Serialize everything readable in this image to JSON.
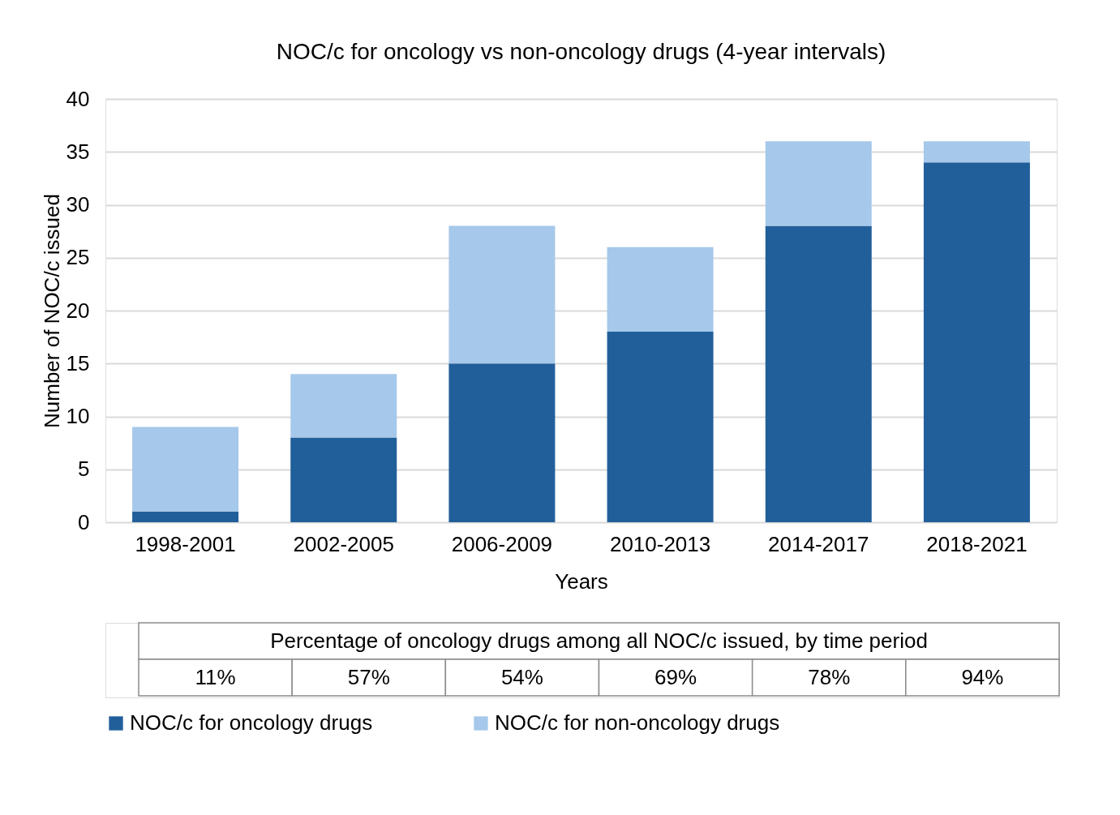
{
  "chart_data": {
    "type": "bar",
    "stacked": true,
    "title": "NOC/c for oncology vs non-oncology drugs (4-year intervals)",
    "xlabel": "Years",
    "ylabel": "Number of NOC/c issued",
    "categories": [
      "1998-2001",
      "2002-2005",
      "2006-2009",
      "2010-2013",
      "2014-2017",
      "2018-2021"
    ],
    "series": [
      {
        "name": "NOC/c for oncology drugs",
        "color": "#215f9a",
        "values": [
          1,
          8,
          15,
          18,
          28,
          34
        ]
      },
      {
        "name": "NOC/c for non-oncology drugs",
        "color": "#a6c8ea",
        "values": [
          8,
          6,
          13,
          8,
          8,
          2
        ]
      }
    ],
    "ylim": [
      0,
      40
    ],
    "yticks": [
      0,
      5,
      10,
      15,
      20,
      25,
      30,
      35,
      40
    ],
    "grid": "y",
    "legend": "bottom",
    "annotations": [
      "Percentage of oncology drugs among all NOC/c issued, by time period",
      "11%",
      "57%",
      "54%",
      "69%",
      "78%",
      "94%"
    ]
  }
}
